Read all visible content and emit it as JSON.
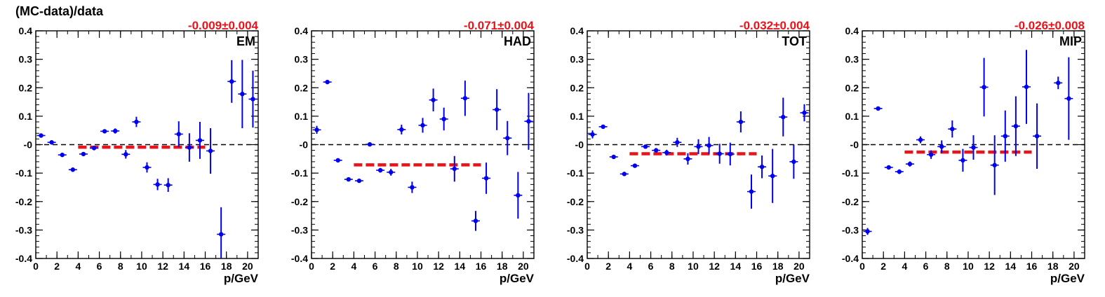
{
  "figure": {
    "ylabel": "(MC-data)/data"
  },
  "chart_data": [
    {
      "type": "scatter",
      "panel_label": "EM",
      "fit_label": "-0.009±0.004",
      "fit_value": -0.009,
      "fit_xrange": [
        4,
        16
      ],
      "xlabel": "p/GeV",
      "xlim": [
        0,
        21
      ],
      "ylim": [
        -0.4,
        0.4
      ],
      "xticks": [
        "0",
        "2",
        "4",
        "6",
        "8",
        "10",
        "12",
        "14",
        "16",
        "18",
        "20"
      ],
      "yticks": [
        "-0.4",
        "-0.3",
        "-0.2",
        "-0.1",
        "-0",
        "0.1",
        "0.2",
        "0.3",
        "0.4"
      ],
      "reference_line": 0,
      "points": [
        {
          "x": 0.5,
          "y": 0.032,
          "err": 0.005
        },
        {
          "x": 1.5,
          "y": 0.008,
          "err": 0.005
        },
        {
          "x": 2.5,
          "y": -0.036,
          "err": 0.005
        },
        {
          "x": 3.5,
          "y": -0.088,
          "err": 0.005
        },
        {
          "x": 4.5,
          "y": -0.033,
          "err": 0.006
        },
        {
          "x": 5.5,
          "y": -0.012,
          "err": 0.006
        },
        {
          "x": 6.5,
          "y": 0.047,
          "err": 0.007
        },
        {
          "x": 7.5,
          "y": 0.048,
          "err": 0.009
        },
        {
          "x": 8.5,
          "y": -0.034,
          "err": 0.015
        },
        {
          "x": 9.5,
          "y": 0.08,
          "err": 0.018
        },
        {
          "x": 10.5,
          "y": -0.08,
          "err": 0.018
        },
        {
          "x": 11.5,
          "y": -0.14,
          "err": 0.02
        },
        {
          "x": 12.5,
          "y": -0.142,
          "err": 0.024
        },
        {
          "x": 13.5,
          "y": 0.037,
          "err": 0.045
        },
        {
          "x": 14.5,
          "y": -0.01,
          "err": 0.05
        },
        {
          "x": 15.5,
          "y": 0.015,
          "err": 0.065
        },
        {
          "x": 16.5,
          "y": -0.022,
          "err": 0.08
        },
        {
          "x": 17.5,
          "y": -0.315,
          "err": 0.095
        },
        {
          "x": 18.5,
          "y": 0.222,
          "err": 0.075
        },
        {
          "x": 19.5,
          "y": 0.178,
          "err": 0.12
        },
        {
          "x": 20.5,
          "y": 0.16,
          "err": 0.1
        }
      ]
    },
    {
      "type": "scatter",
      "panel_label": "HAD",
      "fit_label": "-0.071±0.004",
      "fit_value": -0.071,
      "fit_xrange": [
        4,
        16
      ],
      "xlabel": "p/GeV",
      "xlim": [
        0,
        21
      ],
      "ylim": [
        -0.4,
        0.4
      ],
      "xticks": [
        "0",
        "2",
        "4",
        "6",
        "8",
        "10",
        "12",
        "14",
        "16",
        "18",
        "20"
      ],
      "yticks": [
        "-0.4",
        "-0.3",
        "-0.2",
        "-0.1",
        "-0",
        "0.1",
        "0.2",
        "0.3",
        "0.4"
      ],
      "reference_line": 0,
      "points": [
        {
          "x": 0.5,
          "y": 0.052,
          "err": 0.014
        },
        {
          "x": 1.5,
          "y": 0.22,
          "err": 0.004
        },
        {
          "x": 2.5,
          "y": -0.055,
          "err": 0.004
        },
        {
          "x": 3.5,
          "y": -0.122,
          "err": 0.005
        },
        {
          "x": 4.5,
          "y": -0.127,
          "err": 0.005
        },
        {
          "x": 5.5,
          "y": 0.001,
          "err": 0.006
        },
        {
          "x": 6.5,
          "y": -0.09,
          "err": 0.008
        },
        {
          "x": 7.5,
          "y": -0.097,
          "err": 0.012
        },
        {
          "x": 8.5,
          "y": 0.053,
          "err": 0.017
        },
        {
          "x": 9.5,
          "y": -0.15,
          "err": 0.02
        },
        {
          "x": 10.5,
          "y": 0.068,
          "err": 0.026
        },
        {
          "x": 11.5,
          "y": 0.157,
          "err": 0.04
        },
        {
          "x": 12.5,
          "y": 0.09,
          "err": 0.04
        },
        {
          "x": 13.5,
          "y": -0.085,
          "err": 0.045
        },
        {
          "x": 14.5,
          "y": 0.163,
          "err": 0.062
        },
        {
          "x": 15.5,
          "y": -0.268,
          "err": 0.035
        },
        {
          "x": 16.5,
          "y": -0.118,
          "err": 0.055
        },
        {
          "x": 17.5,
          "y": 0.123,
          "err": 0.072
        },
        {
          "x": 18.5,
          "y": 0.023,
          "err": 0.06
        },
        {
          "x": 19.5,
          "y": -0.178,
          "err": 0.082
        },
        {
          "x": 20.5,
          "y": 0.082,
          "err": 0.1
        }
      ]
    },
    {
      "type": "scatter",
      "panel_label": "TOT",
      "fit_label": "-0.032±0.004",
      "fit_value": -0.032,
      "fit_xrange": [
        4,
        16
      ],
      "xlabel": "p/GeV",
      "xlim": [
        0,
        21
      ],
      "ylim": [
        -0.4,
        0.4
      ],
      "xticks": [
        "0",
        "2",
        "4",
        "6",
        "8",
        "10",
        "12",
        "14",
        "16",
        "18",
        "20"
      ],
      "yticks": [
        "-0.4",
        "-0.3",
        "-0.2",
        "-0.1",
        "-0",
        "0.1",
        "0.2",
        "0.3",
        "0.4"
      ],
      "reference_line": 0,
      "points": [
        {
          "x": 0.5,
          "y": 0.036,
          "err": 0.014
        },
        {
          "x": 1.5,
          "y": 0.063,
          "err": 0.005
        },
        {
          "x": 2.5,
          "y": -0.043,
          "err": 0.004
        },
        {
          "x": 3.5,
          "y": -0.103,
          "err": 0.005
        },
        {
          "x": 4.5,
          "y": -0.074,
          "err": 0.005
        },
        {
          "x": 5.5,
          "y": -0.007,
          "err": 0.005
        },
        {
          "x": 6.5,
          "y": -0.02,
          "err": 0.008
        },
        {
          "x": 7.5,
          "y": -0.028,
          "err": 0.01
        },
        {
          "x": 8.5,
          "y": 0.008,
          "err": 0.016
        },
        {
          "x": 9.5,
          "y": -0.05,
          "err": 0.02
        },
        {
          "x": 10.5,
          "y": -0.007,
          "err": 0.026
        },
        {
          "x": 11.5,
          "y": -0.003,
          "err": 0.03
        },
        {
          "x": 12.5,
          "y": -0.032,
          "err": 0.035
        },
        {
          "x": 13.5,
          "y": -0.033,
          "err": 0.04
        },
        {
          "x": 14.5,
          "y": 0.08,
          "err": 0.037
        },
        {
          "x": 15.5,
          "y": -0.165,
          "err": 0.06
        },
        {
          "x": 16.5,
          "y": -0.078,
          "err": 0.04
        },
        {
          "x": 17.5,
          "y": -0.11,
          "err": 0.095
        },
        {
          "x": 18.5,
          "y": 0.097,
          "err": 0.068
        },
        {
          "x": 19.5,
          "y": -0.06,
          "err": 0.06
        },
        {
          "x": 20.5,
          "y": 0.112,
          "err": 0.03
        }
      ]
    },
    {
      "type": "scatter",
      "panel_label": "MIP",
      "fit_label": "-0.026±0.008",
      "fit_value": -0.026,
      "fit_xrange": [
        4,
        16
      ],
      "xlabel": "p/GeV",
      "xlim": [
        0,
        21
      ],
      "ylim": [
        -0.4,
        0.4
      ],
      "xticks": [
        "0",
        "2",
        "4",
        "6",
        "8",
        "10",
        "12",
        "14",
        "16",
        "18",
        "20"
      ],
      "yticks": [
        "-0.4",
        "-0.3",
        "-0.2",
        "-0.1",
        "-0",
        "0.1",
        "0.2",
        "0.3",
        "0.4"
      ],
      "reference_line": 0,
      "points": [
        {
          "x": 0.5,
          "y": -0.305,
          "err": 0.012
        },
        {
          "x": 1.5,
          "y": 0.127,
          "err": 0.004
        },
        {
          "x": 2.5,
          "y": -0.08,
          "err": 0.006
        },
        {
          "x": 3.5,
          "y": -0.095,
          "err": 0.008
        },
        {
          "x": 4.5,
          "y": -0.068,
          "err": 0.009
        },
        {
          "x": 5.5,
          "y": 0.017,
          "err": 0.012
        },
        {
          "x": 6.5,
          "y": -0.035,
          "err": 0.015
        },
        {
          "x": 7.5,
          "y": -0.007,
          "err": 0.022
        },
        {
          "x": 8.5,
          "y": 0.055,
          "err": 0.03
        },
        {
          "x": 9.5,
          "y": -0.055,
          "err": 0.04
        },
        {
          "x": 10.5,
          "y": -0.01,
          "err": 0.043
        },
        {
          "x": 11.5,
          "y": 0.202,
          "err": 0.103
        },
        {
          "x": 12.5,
          "y": -0.072,
          "err": 0.105
        },
        {
          "x": 13.5,
          "y": 0.03,
          "err": 0.09
        },
        {
          "x": 14.5,
          "y": 0.065,
          "err": 0.105
        },
        {
          "x": 15.5,
          "y": 0.203,
          "err": 0.13
        },
        {
          "x": 16.5,
          "y": 0.03,
          "err": 0.115
        },
        {
          "x": 18.5,
          "y": 0.217,
          "err": 0.022
        },
        {
          "x": 19.5,
          "y": 0.162,
          "err": 0.145
        }
      ]
    }
  ]
}
